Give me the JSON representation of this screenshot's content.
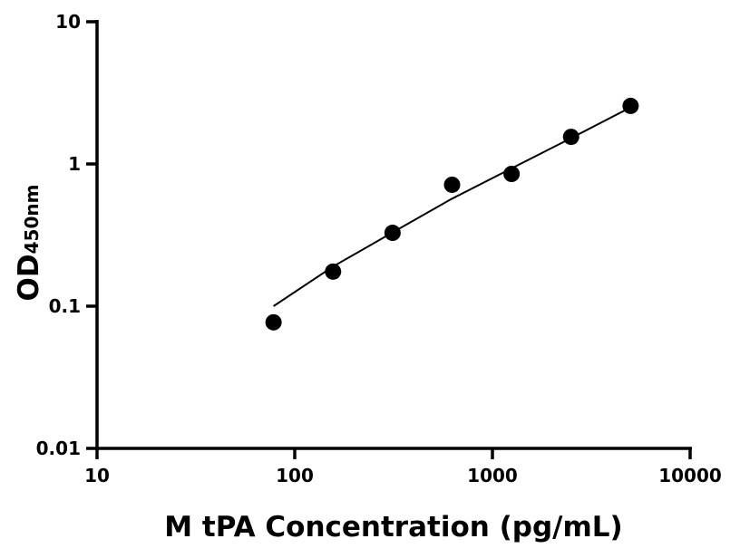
{
  "chart_data": {
    "type": "scatter",
    "title": "",
    "xlabel": "M tPA Concentration (pg/mL)",
    "ylabel": "OD",
    "ylabel_sub": "450nm",
    "xscale": "log",
    "yscale": "log",
    "xlim": [
      10,
      10000
    ],
    "ylim": [
      0.01,
      10
    ],
    "xticks": [
      "10",
      "100",
      "1000",
      "10000"
    ],
    "yticks": [
      "0.01",
      "0.1",
      "1",
      "10"
    ],
    "grid": false,
    "series": [
      {
        "x": [
          78.125,
          156.25,
          312.5,
          625,
          1250,
          2500,
          5000
        ],
        "y": [
          0.077,
          0.175,
          0.328,
          0.714,
          0.851,
          1.55,
          2.56
        ],
        "color": "#000000"
      }
    ],
    "fit_curve": {
      "x": [
        78.125,
        156.25,
        312.5,
        625,
        1250,
        2500,
        5000
      ],
      "y": [
        0.1,
        0.19,
        0.33,
        0.57,
        0.93,
        1.52,
        2.5
      ],
      "color": "#000000"
    }
  }
}
